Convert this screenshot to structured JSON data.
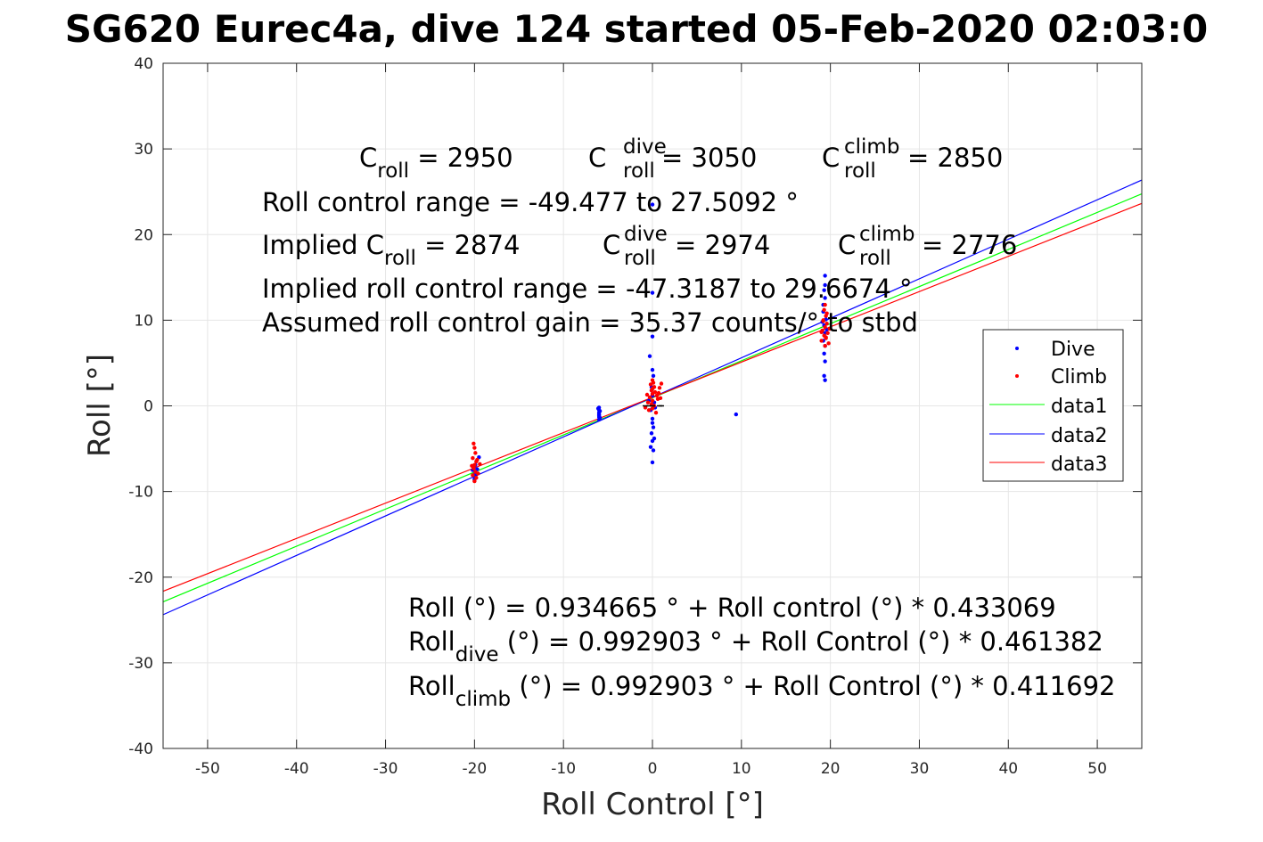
{
  "chart_data": {
    "type": "scatter",
    "title": "SG620 Eurec4a, dive 124 started 05-Feb-2020 02:03:0",
    "xlabel": "Roll Control [°]",
    "ylabel": "Roll [°]",
    "xlim": [
      -55,
      55
    ],
    "ylim": [
      -40,
      40
    ],
    "xticks": [
      -50,
      -40,
      -30,
      -20,
      -10,
      0,
      10,
      20,
      30,
      40,
      50
    ],
    "yticks": [
      -40,
      -30,
      -20,
      -10,
      0,
      10,
      20,
      30,
      40
    ],
    "xtick_labels": [
      "-50",
      "-40",
      "-30",
      "-20",
      "-10",
      "0",
      "10",
      "20",
      "30",
      "40",
      "50"
    ],
    "ytick_labels": [
      "-40",
      "-30",
      "-20",
      "-10",
      "0",
      "10",
      "20",
      "30",
      "40"
    ],
    "grid": true,
    "legend_position": "right",
    "series": [
      {
        "name": "Dive",
        "kind": "points",
        "color": "#0000ff",
        "points": [
          [
            -20.1,
            -7.2
          ],
          [
            -19.9,
            -7.8
          ],
          [
            -20.0,
            -8.3
          ],
          [
            -19.8,
            -8.0
          ],
          [
            -20.2,
            -7.5
          ],
          [
            -19.9,
            -6.9
          ],
          [
            -20.0,
            -8.6
          ],
          [
            -19.5,
            -6.0
          ],
          [
            -20.1,
            -8.1
          ],
          [
            -19.7,
            -7.4
          ],
          [
            -6.0,
            -0.2
          ],
          [
            -6.0,
            -0.5
          ],
          [
            -6.0,
            -0.8
          ],
          [
            -6.0,
            -1.1
          ],
          [
            -5.9,
            -1.4
          ],
          [
            -6.0,
            -1.6
          ],
          [
            -6.1,
            -0.3
          ],
          [
            -6.0,
            -1.0
          ],
          [
            -5.9,
            -0.6
          ],
          [
            -6.0,
            -1.3
          ],
          [
            0.0,
            23.5
          ],
          [
            0.0,
            13.2
          ],
          [
            0.0,
            8.1
          ],
          [
            -0.3,
            5.8
          ],
          [
            0.0,
            4.2
          ],
          [
            0.1,
            3.5
          ],
          [
            -0.1,
            2.2
          ],
          [
            0.0,
            1.2
          ],
          [
            0.2,
            0.4
          ],
          [
            -0.2,
            -0.5
          ],
          [
            0.0,
            -1.5
          ],
          [
            0.1,
            -2.5
          ],
          [
            -0.1,
            -3.2
          ],
          [
            0.0,
            -4.1
          ],
          [
            -0.2,
            -4.8
          ],
          [
            0.1,
            -5.2
          ],
          [
            0.0,
            -6.6
          ],
          [
            0.3,
            -0.2
          ],
          [
            -0.4,
            0.6
          ],
          [
            0.0,
            -2.0
          ],
          [
            0.2,
            -3.8
          ],
          [
            -0.1,
            1.8
          ],
          [
            9.4,
            -1.0
          ],
          [
            19.4,
            15.2
          ],
          [
            19.3,
            13.5
          ],
          [
            19.4,
            12.6
          ],
          [
            19.2,
            11.0
          ],
          [
            19.5,
            10.1
          ],
          [
            19.3,
            9.4
          ],
          [
            19.4,
            8.5
          ],
          [
            19.2,
            7.6
          ],
          [
            19.4,
            7.0
          ],
          [
            19.3,
            6.1
          ],
          [
            19.4,
            5.2
          ],
          [
            19.3,
            3.5
          ],
          [
            19.4,
            3.0
          ],
          [
            19.6,
            8.9
          ],
          [
            19.1,
            9.8
          ],
          [
            19.4,
            14.1
          ],
          [
            19.2,
            11.8
          ]
        ]
      },
      {
        "name": "Climb",
        "kind": "points",
        "color": "#ff0000",
        "points": [
          [
            -20.1,
            -4.4
          ],
          [
            -20.0,
            -4.9
          ],
          [
            -19.9,
            -5.5
          ],
          [
            -20.2,
            -6.1
          ],
          [
            -19.8,
            -6.5
          ],
          [
            -20.0,
            -6.9
          ],
          [
            -20.1,
            -7.3
          ],
          [
            -19.9,
            -7.7
          ],
          [
            -20.2,
            -8.1
          ],
          [
            -19.8,
            -8.4
          ],
          [
            -20.0,
            -8.8
          ],
          [
            -19.7,
            -6.3
          ],
          [
            -19.4,
            -6.8
          ],
          [
            -20.3,
            -7.0
          ],
          [
            -19.6,
            -7.9
          ],
          [
            0.0,
            3.0
          ],
          [
            0.1,
            2.7
          ],
          [
            -0.2,
            2.5
          ],
          [
            0.2,
            2.2
          ],
          [
            0.0,
            2.0
          ],
          [
            -0.1,
            1.8
          ],
          [
            0.3,
            1.6
          ],
          [
            0.0,
            1.4
          ],
          [
            0.5,
            1.2
          ],
          [
            -0.3,
            1.0
          ],
          [
            0.6,
            0.8
          ],
          [
            0.0,
            0.6
          ],
          [
            -0.5,
            0.4
          ],
          [
            0.8,
            2.1
          ],
          [
            -0.1,
            0.2
          ],
          [
            0.2,
            0.0
          ],
          [
            0.0,
            -0.3
          ],
          [
            -0.4,
            -0.5
          ],
          [
            0.4,
            -0.8
          ],
          [
            1.0,
            2.6
          ],
          [
            0.7,
            1.5
          ],
          [
            -0.6,
            1.3
          ],
          [
            0.9,
            0.9
          ],
          [
            -0.8,
            -0.2
          ],
          [
            19.4,
            11.8
          ],
          [
            19.3,
            11.2
          ],
          [
            19.5,
            10.5
          ],
          [
            19.2,
            10.0
          ],
          [
            19.6,
            9.6
          ],
          [
            19.4,
            9.2
          ],
          [
            19.1,
            8.8
          ],
          [
            19.7,
            8.5
          ],
          [
            19.3,
            8.2
          ],
          [
            19.5,
            7.9
          ],
          [
            19.0,
            7.6
          ],
          [
            19.8,
            7.3
          ],
          [
            19.4,
            7.0
          ],
          [
            19.2,
            9.9
          ],
          [
            19.6,
            10.8
          ],
          [
            19.9,
            9.0
          ],
          [
            19.0,
            8.6
          ],
          [
            19.5,
            8.0
          ]
        ]
      },
      {
        "name": "data1",
        "kind": "line",
        "color": "#00ff00",
        "intercept": 0.934665,
        "slope": 0.433069
      },
      {
        "name": "data2",
        "kind": "line",
        "color": "#0000ff",
        "intercept": 0.992903,
        "slope": 0.461382
      },
      {
        "name": "data3",
        "kind": "line",
        "color": "#ff0000",
        "intercept": 0.992903,
        "slope": 0.411692
      }
    ],
    "black_marks": [
      [
        -0.8,
        0.0
      ],
      [
        0.0,
        0.0
      ],
      [
        0.8,
        0.0
      ],
      [
        1.0,
        0.0
      ],
      [
        -0.4,
        0.0
      ]
    ],
    "annotations": {
      "c_roll": {
        "base": "C",
        "sub": "roll",
        "rest": " = 2950"
      },
      "c_roll_dive": {
        "base": "C",
        "sup": "dive",
        "sub": "roll",
        "rest": " = 3050"
      },
      "c_roll_climb": {
        "base": "C",
        "sup": "climb",
        "sub": "roll",
        "rest": " = 2850"
      },
      "roll_control_range": "Roll control range = -49.477 to 27.5092 °",
      "implied_c_roll": {
        "prefix": "Implied C",
        "sub": "roll",
        "rest": " = 2874"
      },
      "implied_c_roll_dive": {
        "base": "C",
        "sup": "dive",
        "sub": "roll",
        "rest": " = 2974"
      },
      "implied_c_roll_climb": {
        "base": "C",
        "sup": "climb",
        "sub": "roll",
        "rest": " = 2776"
      },
      "implied_range": "Implied roll control range = -47.3187 to 29.6674 °",
      "gain": "Assumed roll control gain = 35.37 counts/° to stbd",
      "fit_all": "Roll (°) = 0.934665 ° + Roll control (°) * 0.433069",
      "fit_dive": {
        "base": "Roll",
        "sub": "dive",
        "rest": " (°) = 0.992903 ° + Roll Control (°) * 0.461382"
      },
      "fit_climb": {
        "base": "Roll",
        "sub": "climb",
        "rest": " (°) = 0.992903 ° + Roll Control (°) * 0.411692"
      }
    }
  }
}
